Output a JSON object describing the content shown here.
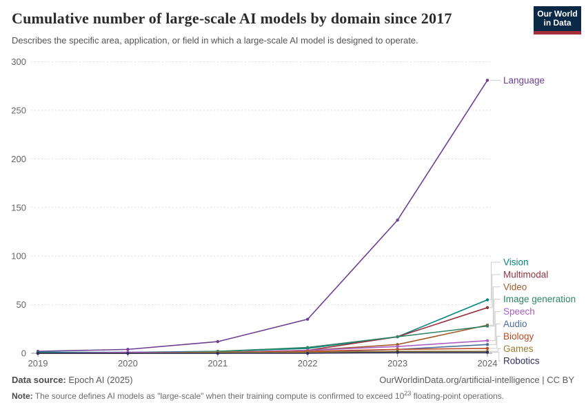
{
  "header": {
    "title": "Cumulative number of large-scale AI models by domain since 2017",
    "subtitle": "Describes the specific area, application, or field in which a large-scale AI model is designed to operate.",
    "logo": {
      "line1": "Our World",
      "line2": "in Data",
      "bg_color": "#0b2947",
      "stripe_color": "#a52e38"
    }
  },
  "chart_data": {
    "type": "line",
    "title": "Cumulative number of large-scale AI models by domain since 2017",
    "x": [
      2019,
      2020,
      2021,
      2022,
      2023,
      2024
    ],
    "xlabel": "",
    "ylabel": "",
    "ylim": [
      0,
      300
    ],
    "yticks": [
      0,
      50,
      100,
      150,
      200,
      250,
      300
    ],
    "grid": "dashed horizontal gridlines",
    "legend_position": "right of line endpoints, connected by gray leader lines",
    "axis_text_color": "#666666",
    "gridline_color": "#dcdcdc",
    "baseline_color": "#8f8f8f",
    "leader_color": "#cccccc",
    "series": [
      {
        "name": "Language",
        "color": "#6d3e91",
        "values": [
          2,
          4,
          12,
          35,
          137,
          281
        ],
        "legend_slot": null
      },
      {
        "name": "Vision",
        "color": "#00847e",
        "values": [
          1,
          1,
          2,
          5,
          17,
          55
        ],
        "legend_slot": 0
      },
      {
        "name": "Multimodal",
        "color": "#92333f",
        "values": [
          0,
          0,
          1,
          3,
          17,
          47
        ],
        "legend_slot": 1
      },
      {
        "name": "Video",
        "color": "#a25c2c",
        "values": [
          0,
          0,
          1,
          3,
          9,
          29
        ],
        "legend_slot": 2
      },
      {
        "name": "Image generation",
        "color": "#2c8465",
        "values": [
          0,
          0,
          2,
          6,
          17,
          28
        ],
        "legend_slot": 3
      },
      {
        "name": "Speech",
        "color": "#ad5fc4",
        "values": [
          0,
          1,
          1,
          3,
          7,
          13
        ],
        "legend_slot": 4
      },
      {
        "name": "Audio",
        "color": "#4c6a9c",
        "values": [
          0,
          0,
          0,
          1,
          4,
          9
        ],
        "legend_slot": 5
      },
      {
        "name": "Biology",
        "color": "#bc4a23",
        "values": [
          0,
          0,
          1,
          2,
          4,
          5
        ],
        "legend_slot": 6
      },
      {
        "name": "Games",
        "color": "#9b7c2e",
        "values": [
          0,
          0,
          1,
          1,
          2,
          2
        ],
        "legend_slot": 7
      },
      {
        "name": "Robotics",
        "color": "#2d2e5f",
        "values": [
          0,
          0,
          0,
          0,
          1,
          1
        ],
        "legend_slot": 8
      }
    ]
  },
  "footer": {
    "source_label": "Data source:",
    "source_value": " Epoch AI (2025)",
    "credit": "OurWorldinData.org/artificial-intelligence | CC BY",
    "note_label": "Note:",
    "note_before": " The source defines AI models as \"large-scale\" when their training compute is confirmed to exceed 10",
    "note_exponent": "23",
    "note_after": " floating-point operations."
  }
}
